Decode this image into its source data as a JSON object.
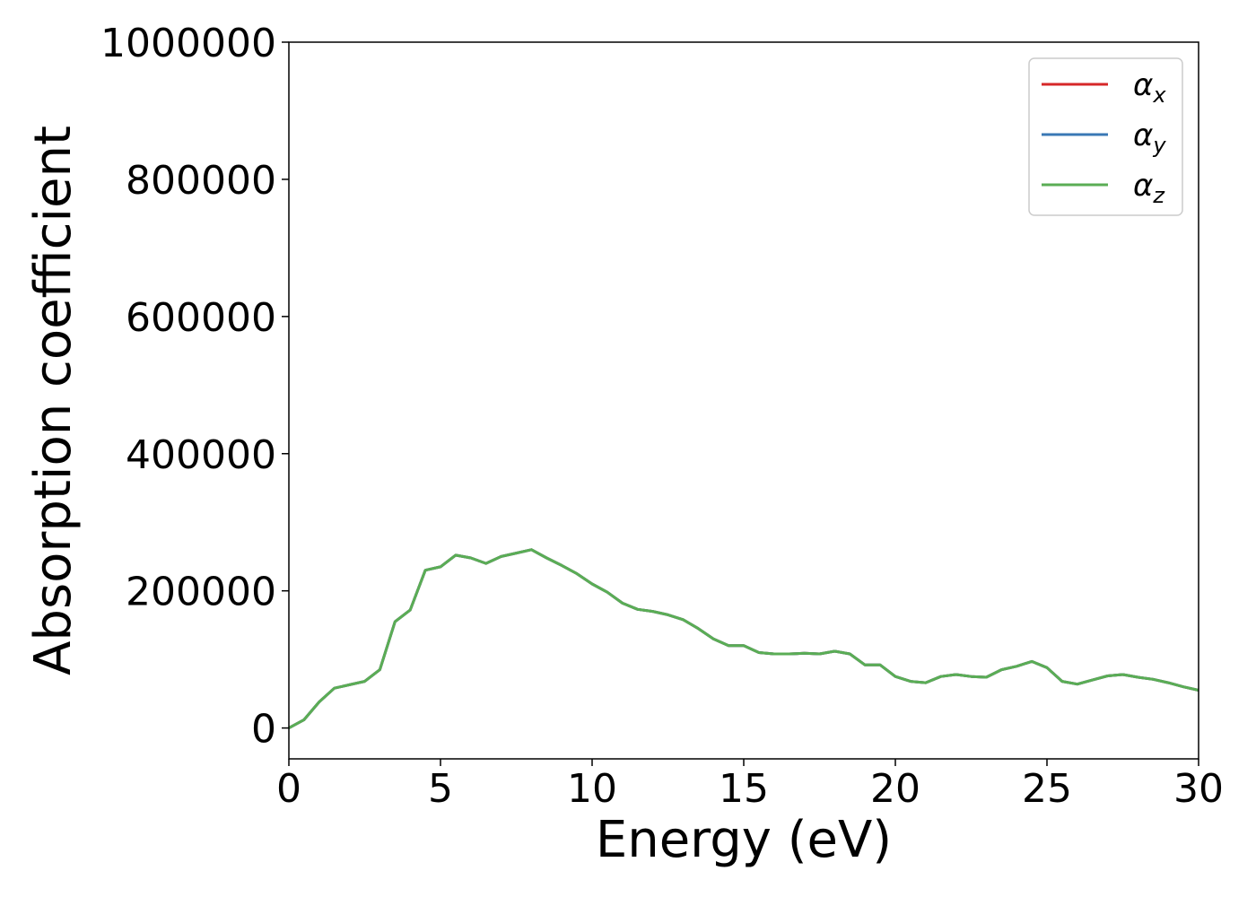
{
  "chart_data": {
    "type": "line",
    "title": "",
    "xlabel": "Energy (eV)",
    "ylabel": "Absorption coefficient",
    "xlim": [
      0,
      30
    ],
    "ylim": [
      -45000,
      1000000
    ],
    "xticks": [
      0,
      5,
      10,
      15,
      20,
      25,
      30
    ],
    "xtick_labels": [
      "0",
      "5",
      "10",
      "15",
      "20",
      "25",
      "30"
    ],
    "yticks": [
      0,
      200000,
      400000,
      600000,
      800000,
      1000000
    ],
    "ytick_labels": [
      "0",
      "200000",
      "400000",
      "600000",
      "800000",
      "1000000"
    ],
    "grid": false,
    "legend_position": "top-right",
    "x": [
      0,
      0.5,
      1,
      1.5,
      2,
      2.5,
      3,
      3.5,
      4,
      4.5,
      5,
      5.5,
      6,
      6.5,
      7,
      7.5,
      8,
      8.5,
      9,
      9.5,
      10,
      10.5,
      11,
      11.5,
      12,
      12.5,
      13,
      13.5,
      14,
      14.5,
      15,
      15.5,
      16,
      16.5,
      17,
      17.5,
      18,
      18.5,
      19,
      19.5,
      20,
      20.5,
      21,
      21.5,
      22,
      22.5,
      23,
      23.5,
      24,
      24.5,
      25,
      25.5,
      26,
      26.5,
      27,
      27.5,
      28,
      28.5,
      29,
      29.5,
      30
    ],
    "series": [
      {
        "name_base": "α",
        "name_sub": "x",
        "color": "#d62728",
        "values": [
          0,
          12000,
          38000,
          58000,
          63000,
          68000,
          85000,
          155000,
          172000,
          230000,
          235000,
          252000,
          248000,
          240000,
          250000,
          255000,
          260000,
          248000,
          237000,
          225000,
          210000,
          198000,
          182000,
          173000,
          170000,
          165000,
          158000,
          145000,
          130000,
          120000,
          120000,
          110000,
          108000,
          108000,
          109000,
          108000,
          112000,
          108000,
          92000,
          92000,
          75000,
          68000,
          66000,
          75000,
          78000,
          75000,
          74000,
          85000,
          90000,
          97000,
          88000,
          68000,
          64000,
          70000,
          76000,
          78000,
          74000,
          71000,
          66000,
          60000,
          55000
        ]
      },
      {
        "name_base": "α",
        "name_sub": "y",
        "color": "#3a78b5",
        "values": [
          0,
          12000,
          38000,
          58000,
          63000,
          68000,
          85000,
          155000,
          172000,
          230000,
          235000,
          252000,
          248000,
          240000,
          250000,
          255000,
          260000,
          248000,
          237000,
          225000,
          210000,
          198000,
          182000,
          173000,
          170000,
          165000,
          158000,
          145000,
          130000,
          120000,
          120000,
          110000,
          108000,
          108000,
          109000,
          108000,
          112000,
          108000,
          92000,
          92000,
          75000,
          68000,
          66000,
          75000,
          78000,
          75000,
          74000,
          85000,
          90000,
          97000,
          88000,
          68000,
          64000,
          70000,
          76000,
          78000,
          74000,
          71000,
          66000,
          60000,
          55000
        ]
      },
      {
        "name_base": "α",
        "name_sub": "z",
        "color": "#5aad55",
        "values": [
          0,
          12000,
          38000,
          58000,
          63000,
          68000,
          85000,
          155000,
          172000,
          230000,
          235000,
          252000,
          248000,
          240000,
          250000,
          255000,
          260000,
          248000,
          237000,
          225000,
          210000,
          198000,
          182000,
          173000,
          170000,
          165000,
          158000,
          145000,
          130000,
          120000,
          120000,
          110000,
          108000,
          108000,
          109000,
          108000,
          112000,
          108000,
          92000,
          92000,
          75000,
          68000,
          66000,
          75000,
          78000,
          75000,
          74000,
          85000,
          90000,
          97000,
          88000,
          68000,
          64000,
          70000,
          76000,
          78000,
          74000,
          71000,
          66000,
          60000,
          55000
        ]
      }
    ]
  }
}
